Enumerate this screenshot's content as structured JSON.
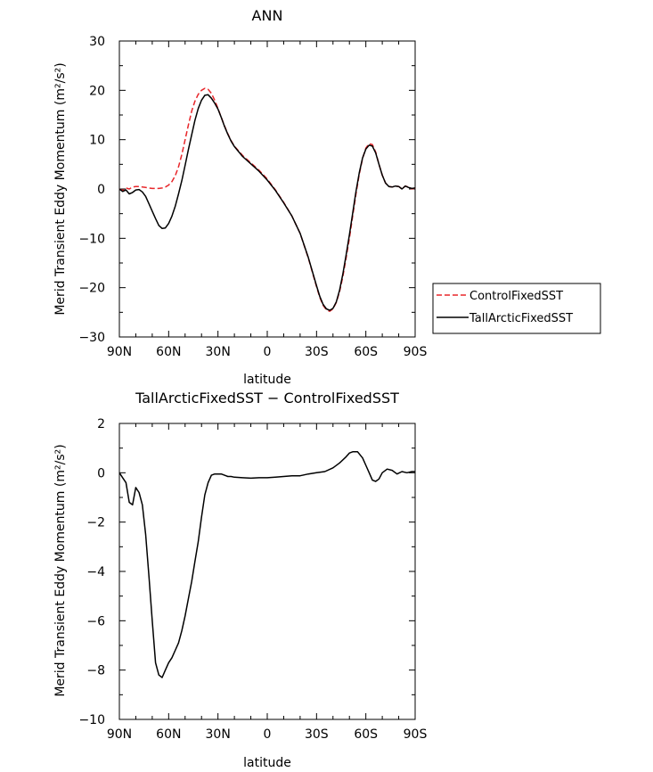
{
  "chart_data": [
    {
      "type": "line",
      "title": "ANN",
      "xlabel": "latitude",
      "ylabel": "Merid Transient Eddy Momentum (m²/s²)",
      "x_ticks": [
        "90N",
        "60N",
        "30N",
        "0",
        "30S",
        "60S",
        "90S"
      ],
      "x_tick_values": [
        90,
        60,
        30,
        0,
        -30,
        -60,
        -90
      ],
      "xlim": [
        90,
        -90
      ],
      "ylim": [
        -30,
        30
      ],
      "y_ticks": [
        30,
        20,
        10,
        0,
        -10,
        -20,
        -30
      ],
      "y_tick_labels": [
        "30",
        "20",
        "10",
        "0",
        "−10",
        "−20",
        "−30"
      ],
      "legend_position": "right",
      "series": [
        {
          "name": "ControlFixedSST",
          "color": "#e8262a",
          "dash": "dashed",
          "x": [
            90,
            88,
            86,
            84,
            82,
            80,
            78,
            76,
            74,
            72,
            70,
            68,
            66,
            64,
            62,
            60,
            58,
            56,
            54,
            52,
            50,
            48,
            46,
            44,
            42,
            40,
            38,
            36,
            34,
            32,
            30,
            28,
            26,
            24,
            22,
            20,
            15,
            10,
            5,
            0,
            -5,
            -10,
            -15,
            -20,
            -25,
            -30,
            -32,
            -34,
            -36,
            -38,
            -40,
            -42,
            -44,
            -46,
            -48,
            -50,
            -52,
            -54,
            -56,
            -58,
            -60,
            -62,
            -64,
            -66,
            -68,
            -70,
            -72,
            -74,
            -76,
            -78,
            -80,
            -82,
            -84,
            -86,
            -88,
            -90
          ],
          "y": [
            0.0,
            -0.3,
            0.2,
            0.0,
            0.4,
            0.5,
            0.5,
            0.4,
            0.3,
            0.2,
            0.1,
            0.1,
            0.1,
            0.2,
            0.4,
            0.8,
            1.5,
            2.7,
            4.5,
            7.0,
            10.0,
            13.0,
            15.8,
            17.8,
            19.2,
            20.0,
            20.4,
            20.2,
            19.4,
            18.0,
            16.3,
            14.5,
            12.8,
            11.2,
            9.8,
            8.7,
            6.8,
            5.3,
            3.8,
            2.0,
            -0.2,
            -2.7,
            -5.5,
            -9.0,
            -14.0,
            -19.8,
            -22.0,
            -23.6,
            -24.5,
            -24.8,
            -24.3,
            -23.0,
            -20.8,
            -17.8,
            -14.0,
            -10.0,
            -5.5,
            -1.0,
            3.0,
            6.2,
            8.3,
            9.2,
            9.0,
            7.5,
            5.0,
            2.8,
            1.2,
            0.5,
            0.4,
            0.6,
            0.5,
            0.0,
            0.6,
            0.4,
            0.0,
            0.2
          ]
        },
        {
          "name": "TallArcticFixedSST",
          "color": "#000000",
          "dash": "solid",
          "x": [
            90,
            88,
            86,
            84,
            82,
            80,
            78,
            76,
            74,
            72,
            70,
            68,
            66,
            64,
            62,
            60,
            58,
            56,
            54,
            52,
            50,
            48,
            46,
            44,
            42,
            40,
            38,
            36,
            34,
            32,
            30,
            28,
            26,
            24,
            22,
            20,
            15,
            10,
            5,
            0,
            -5,
            -10,
            -15,
            -20,
            -25,
            -30,
            -32,
            -34,
            -36,
            -38,
            -40,
            -42,
            -44,
            -46,
            -48,
            -50,
            -52,
            -54,
            -56,
            -58,
            -60,
            -62,
            -64,
            -66,
            -68,
            -70,
            -72,
            -74,
            -76,
            -78,
            -80,
            -82,
            -84,
            -86,
            -88,
            -90
          ],
          "y": [
            0.0,
            -0.5,
            -0.2,
            -1.0,
            -0.7,
            -0.2,
            -0.1,
            -0.6,
            -1.5,
            -3.0,
            -4.5,
            -6.0,
            -7.4,
            -8.0,
            -7.9,
            -7.0,
            -5.5,
            -3.5,
            -1.0,
            1.7,
            4.8,
            8.0,
            11.0,
            13.9,
            16.3,
            18.0,
            19.0,
            19.1,
            18.4,
            17.4,
            16.2,
            14.5,
            12.7,
            11.1,
            9.7,
            8.6,
            6.6,
            5.1,
            3.6,
            1.8,
            -0.3,
            -2.8,
            -5.5,
            -9.0,
            -13.9,
            -19.6,
            -21.8,
            -23.4,
            -24.3,
            -24.6,
            -24.2,
            -22.9,
            -20.5,
            -17.3,
            -13.4,
            -9.3,
            -4.9,
            -0.5,
            3.3,
            6.3,
            8.1,
            8.9,
            8.7,
            7.3,
            5.0,
            2.8,
            1.2,
            0.5,
            0.4,
            0.6,
            0.5,
            0.0,
            0.6,
            0.3,
            0.1,
            0.2
          ]
        }
      ]
    },
    {
      "type": "line",
      "title": "TallArcticFixedSST − ControlFixedSST",
      "xlabel": "latitude",
      "ylabel": "Merid Transient Eddy Momentum (m²/s²)",
      "x_ticks": [
        "90N",
        "60N",
        "30N",
        "0",
        "30S",
        "60S",
        "90S"
      ],
      "x_tick_values": [
        90,
        60,
        30,
        0,
        -30,
        -60,
        -90
      ],
      "xlim": [
        90,
        -90
      ],
      "ylim": [
        -10,
        2
      ],
      "y_ticks": [
        2,
        0,
        -2,
        -4,
        -6,
        -8,
        -10
      ],
      "y_tick_labels": [
        "2",
        "0",
        "−2",
        "−4",
        "−6",
        "−8",
        "−10"
      ],
      "series": [
        {
          "color": "#000000",
          "dash": "solid",
          "x": [
            90,
            88,
            86,
            84,
            82,
            80,
            78,
            76,
            74,
            72,
            70,
            68,
            66,
            64,
            62,
            60,
            58,
            56,
            54,
            52,
            50,
            48,
            46,
            44,
            42,
            40,
            38,
            36,
            34,
            32,
            30,
            28,
            26,
            24,
            22,
            20,
            15,
            10,
            5,
            0,
            -5,
            -10,
            -15,
            -20,
            -25,
            -30,
            -35,
            -40,
            -44,
            -48,
            -50,
            -52,
            -55,
            -58,
            -60,
            -62,
            -64,
            -66,
            -68,
            -70,
            -73,
            -76,
            -79,
            -82,
            -85,
            -88,
            -90
          ],
          "y": [
            0.0,
            -0.2,
            -0.4,
            -1.2,
            -1.3,
            -0.6,
            -0.8,
            -1.3,
            -2.5,
            -4.2,
            -6.0,
            -7.7,
            -8.2,
            -8.3,
            -8.0,
            -7.7,
            -7.5,
            -7.2,
            -6.9,
            -6.4,
            -5.8,
            -5.1,
            -4.4,
            -3.6,
            -2.8,
            -1.8,
            -0.9,
            -0.4,
            -0.1,
            -0.05,
            -0.05,
            -0.05,
            -0.1,
            -0.15,
            -0.15,
            -0.18,
            -0.2,
            -0.22,
            -0.2,
            -0.2,
            -0.18,
            -0.15,
            -0.12,
            -0.12,
            -0.05,
            0.0,
            0.05,
            0.2,
            0.4,
            0.65,
            0.8,
            0.85,
            0.85,
            0.6,
            0.3,
            0.0,
            -0.3,
            -0.35,
            -0.25,
            0.0,
            0.15,
            0.1,
            -0.05,
            0.05,
            0.0,
            0.05,
            0.05
          ]
        }
      ]
    }
  ]
}
